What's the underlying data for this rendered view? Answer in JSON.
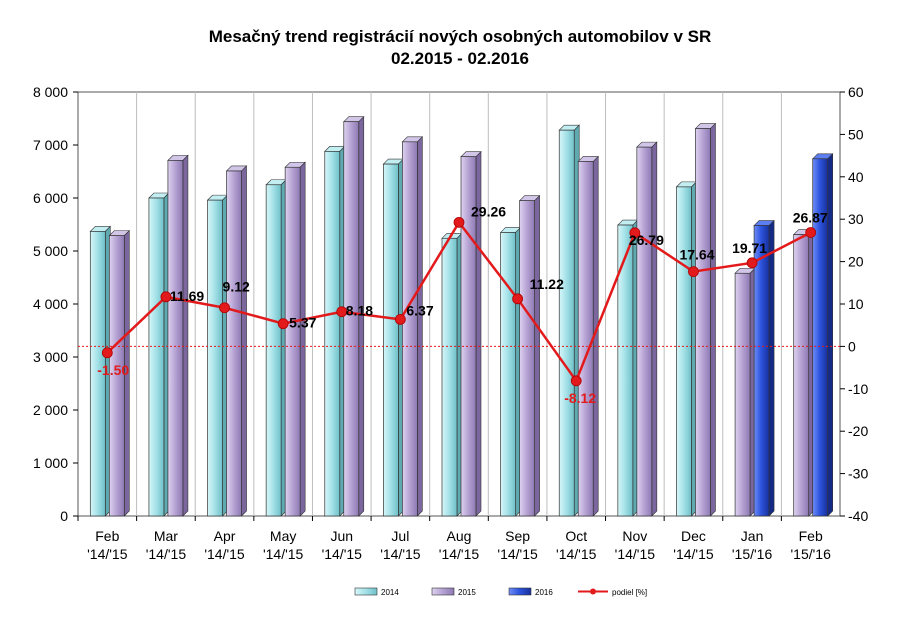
{
  "chart_data": {
    "type": "bar",
    "title": "Mesačný trend registrácií nových osobných automobilov v SR",
    "subtitle": "02.2015 - 02.2016",
    "categories": [
      {
        "line1": "Feb",
        "line2": "'14/'15"
      },
      {
        "line1": "Mar",
        "line2": "'14/'15"
      },
      {
        "line1": "Apr",
        "line2": "'14/'15"
      },
      {
        "line1": "May",
        "line2": "'14/'15"
      },
      {
        "line1": "Jun",
        "line2": "'14/'15"
      },
      {
        "line1": "Jul",
        "line2": "'14/'15"
      },
      {
        "line1": "Aug",
        "line2": "'14/'15"
      },
      {
        "line1": "Sep",
        "line2": "'14/'15"
      },
      {
        "line1": "Oct",
        "line2": "'14/'15"
      },
      {
        "line1": "Nov",
        "line2": "'14/'15"
      },
      {
        "line1": "Dec",
        "line2": "'14/'15"
      },
      {
        "line1": "Jan",
        "line2": "'15/'16"
      },
      {
        "line1": "Feb",
        "line2": "'15/'16"
      }
    ],
    "bars": [
      {
        "first_series": "2014",
        "first": 5370,
        "second_series": "2015",
        "second": 5290
      },
      {
        "first_series": "2014",
        "first": 6000,
        "second_series": "2015",
        "second": 6710
      },
      {
        "first_series": "2014",
        "first": 5960,
        "second_series": "2015",
        "second": 6510
      },
      {
        "first_series": "2014",
        "first": 6250,
        "second_series": "2015",
        "second": 6580
      },
      {
        "first_series": "2014",
        "first": 6880,
        "second_series": "2015",
        "second": 7440
      },
      {
        "first_series": "2014",
        "first": 6640,
        "second_series": "2015",
        "second": 7060
      },
      {
        "first_series": "2014",
        "first": 5240,
        "second_series": "2015",
        "second": 6780
      },
      {
        "first_series": "2014",
        "first": 5350,
        "second_series": "2015",
        "second": 5950
      },
      {
        "first_series": "2014",
        "first": 7280,
        "second_series": "2015",
        "second": 6690
      },
      {
        "first_series": "2014",
        "first": 5490,
        "second_series": "2015",
        "second": 6960
      },
      {
        "first_series": "2014",
        "first": 6210,
        "second_series": "2015",
        "second": 7310
      },
      {
        "first_series": "2015",
        "first": 4580,
        "second_series": "2016",
        "second": 5480
      },
      {
        "first_series": "2015",
        "first": 5310,
        "second_series": "2016",
        "second": 6740
      }
    ],
    "line": {
      "name": "podiel [%]",
      "values": [
        -1.5,
        11.69,
        9.12,
        5.37,
        8.18,
        6.37,
        29.26,
        11.22,
        -8.12,
        26.79,
        17.64,
        19.71,
        26.87
      ],
      "labels": [
        "-1.50",
        "11.69",
        "9.12",
        "5.37",
        "8.18",
        "6.37",
        "29.26",
        "11.22",
        "-8.12",
        "26.79",
        "17.64",
        "19.71",
        "26.87"
      ]
    },
    "y_left": {
      "min": 0,
      "max": 8000,
      "step": 1000,
      "tick_labels": [
        "0",
        "1 000",
        "2 000",
        "3 000",
        "4 000",
        "5 000",
        "6 000",
        "7 000",
        "8 000"
      ]
    },
    "y_right": {
      "min": -40,
      "max": 60,
      "step": 10,
      "tick_labels": [
        "-40",
        "-30",
        "-20",
        "-10",
        "0",
        "10",
        "20",
        "30",
        "40",
        "50",
        "60"
      ]
    },
    "legend": {
      "position": "bottom",
      "items": [
        {
          "key": "2014",
          "label": "2014",
          "kind": "bar"
        },
        {
          "key": "2015",
          "label": "2015",
          "kind": "bar"
        },
        {
          "key": "2016",
          "label": "2016",
          "kind": "bar"
        },
        {
          "key": "line",
          "label": "podiel [%]",
          "kind": "line"
        }
      ]
    },
    "zero_reference_line": true,
    "grid": {
      "horizontal": false,
      "vertical": true
    },
    "colors": {
      "2014": "#9fe0e6",
      "2015": "#b9a6d6",
      "2016": "#2f55e0",
      "line": "#e31a1c",
      "positive_label": "#000000",
      "negative_label": "#e31a1c"
    }
  }
}
